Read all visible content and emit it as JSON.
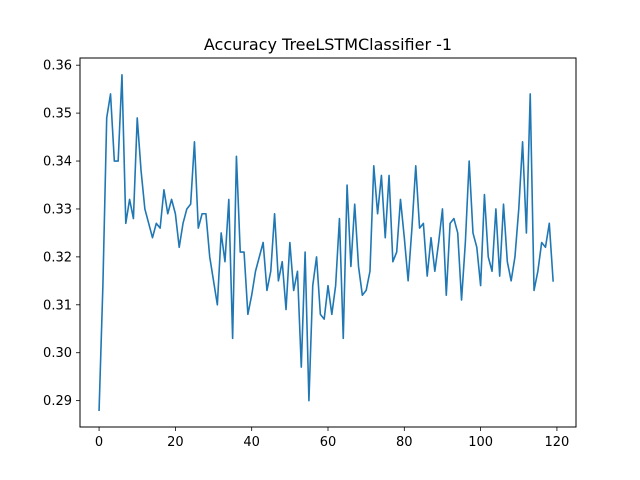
{
  "chart_data": {
    "type": "line",
    "title": "Accuracy TreeLSTMClassifier -1",
    "xlabel": "",
    "ylabel": "",
    "xlim": [
      -5,
      125
    ],
    "ylim": [
      0.2845,
      0.3615
    ],
    "xticks": [
      0,
      20,
      40,
      60,
      80,
      100,
      120
    ],
    "yticks": [
      0.29,
      0.3,
      0.31,
      0.32,
      0.33,
      0.34,
      0.35,
      0.36
    ],
    "ytick_labels": [
      "0.29",
      "0.30",
      "0.31",
      "0.32",
      "0.33",
      "0.34",
      "0.35",
      "0.36"
    ],
    "grid": false,
    "series": [
      {
        "color": "#1f77b4",
        "values": [
          0.288,
          0.314,
          0.349,
          0.354,
          0.34,
          0.34,
          0.358,
          0.327,
          0.332,
          0.328,
          0.349,
          0.338,
          0.33,
          0.327,
          0.324,
          0.327,
          0.326,
          0.334,
          0.329,
          0.332,
          0.329,
          0.322,
          0.327,
          0.33,
          0.331,
          0.344,
          0.326,
          0.329,
          0.329,
          0.32,
          0.315,
          0.31,
          0.325,
          0.319,
          0.332,
          0.303,
          0.341,
          0.321,
          0.321,
          0.308,
          0.312,
          0.317,
          0.32,
          0.323,
          0.313,
          0.317,
          0.329,
          0.315,
          0.319,
          0.309,
          0.323,
          0.313,
          0.317,
          0.297,
          0.321,
          0.29,
          0.314,
          0.32,
          0.308,
          0.307,
          0.314,
          0.308,
          0.314,
          0.328,
          0.303,
          0.335,
          0.318,
          0.331,
          0.318,
          0.312,
          0.313,
          0.317,
          0.339,
          0.329,
          0.337,
          0.324,
          0.337,
          0.319,
          0.321,
          0.332,
          0.324,
          0.315,
          0.326,
          0.339,
          0.326,
          0.327,
          0.316,
          0.324,
          0.317,
          0.323,
          0.33,
          0.312,
          0.327,
          0.328,
          0.325,
          0.311,
          0.323,
          0.34,
          0.325,
          0.322,
          0.314,
          0.333,
          0.32,
          0.317,
          0.33,
          0.316,
          0.331,
          0.319,
          0.315,
          0.32,
          0.33,
          0.344,
          0.325,
          0.354,
          0.313,
          0.317,
          0.323,
          0.322,
          0.327,
          0.315
        ]
      }
    ]
  }
}
